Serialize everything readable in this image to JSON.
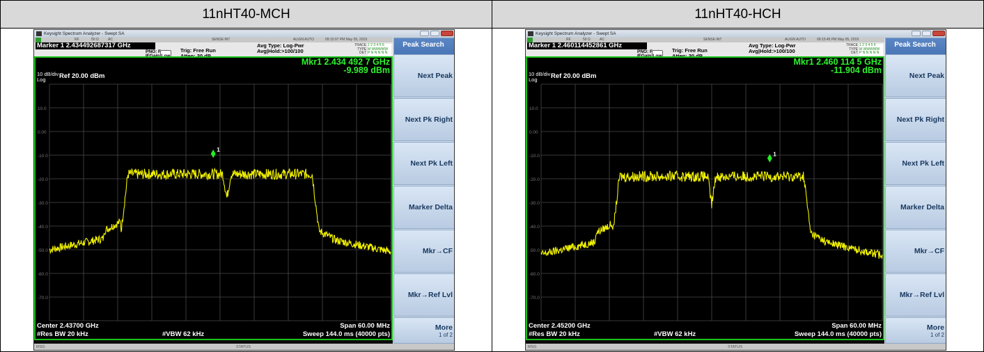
{
  "panels": [
    {
      "header": "11nHT40-MCH",
      "window_title": "Keysight Spectrum Analyzer - Swept SA",
      "status": {
        "rf": "RF",
        "impedance": "50 Ω",
        "coupling": "AC",
        "sense": "SENSE:INT",
        "align": "ALIGN AUTO",
        "datetime": "09:15:07 PM May 05, 2019"
      },
      "marker_box": "Marker 1  2.434492687317 GHz",
      "pno": "PNO: Fast",
      "ifgain": "IFGain:Low",
      "trig": "Trig: Free Run",
      "atten": "Atten: 30 dB",
      "avg_type": "Avg Type: Log-Pwr",
      "avg_hold": "Avg|Hold:>100/100",
      "trace_labels": [
        "TRACE",
        "TYPE",
        "DET"
      ],
      "trace_values": [
        "1 2 3 4 5 6",
        "M WWWWW",
        "P N N N N N"
      ],
      "mkr_readout_1": "Mkr1  2.434 492 7 GHz",
      "mkr_readout_2": "-9.989 dBm",
      "scale": "10 dB/div",
      "log": "Log",
      "ref_level": "Ref  20.00 dBm",
      "y_ticks": [
        "10.0",
        "0.00",
        "-10.0",
        "-20.0",
        "-30.0",
        "-40.0",
        "-50.0",
        "-60.0",
        "-70.0"
      ],
      "center": "Center 2.43700 GHz",
      "res_bw": "#Res BW  20 kHz",
      "vbw": "#VBW  62 kHz",
      "span": "Span 60.00 MHz",
      "sweep": "Sweep  144.0 ms (40000 pts)",
      "msg": "MSG",
      "status_label": "STATUS",
      "softkeys": [
        "Peak Search",
        "Next Peak",
        "Next Pk Right",
        "Next Pk Left",
        "Marker Delta",
        "Mkr→CF",
        "Mkr→Ref Lvl",
        "More"
      ],
      "more_sub": "1 of 2",
      "marker_number": "1",
      "trace_shape": {
        "marker_x_fraction": 0.48,
        "marker_level_dbm": -9.989,
        "notch_x_fraction": 0.52,
        "notch_level_dbm": -28,
        "band_start_fraction": 0.22,
        "band_end_fraction": 0.78,
        "plateau_dbm": -18,
        "edge_dbm": -42,
        "floor_dbm": -50
      }
    },
    {
      "header": "11nHT40-HCH",
      "window_title": "Keysight Spectrum Analyzer - Swept SA",
      "status": {
        "rf": "RF",
        "impedance": "50 Ω",
        "coupling": "AC",
        "sense": "SENSE:INT",
        "align": "ALIGN AUTO",
        "datetime": "09:15:45 PM May 05, 2019"
      },
      "marker_box": "Marker 1  2.460114452861 GHz",
      "pno": "PNO: Fast",
      "ifgain": "IFGain:Low",
      "trig": "Trig: Free Run",
      "atten": "Atten: 30 dB",
      "avg_type": "Avg Type: Log-Pwr",
      "avg_hold": "Avg|Hold:>100/100",
      "trace_labels": [
        "TRACE",
        "TYPE",
        "DET"
      ],
      "trace_values": [
        "1 2 3 4 5 6",
        "M WWWWW",
        "P N N N N N"
      ],
      "mkr_readout_1": "Mkr1  2.460 114 5 GHz",
      "mkr_readout_2": "-11.904 dBm",
      "scale": "10 dB/div",
      "log": "Log",
      "ref_level": "Ref  20.00 dBm",
      "y_ticks": [
        "10.0",
        "0.00",
        "-10.0",
        "-20.0",
        "-30.0",
        "-40.0",
        "-50.0",
        "-60.0",
        "-70.0"
      ],
      "center": "Center 2.45200 GHz",
      "res_bw": "#Res BW  20 kHz",
      "vbw": "#VBW  62 kHz",
      "span": "Span 60.00 MHz",
      "sweep": "Sweep  144.0 ms (40000 pts)",
      "msg": "MSG",
      "status_label": "STATUS",
      "softkeys": [
        "Peak Search",
        "Next Peak",
        "Next Pk Right",
        "Next Pk Left",
        "Marker Delta",
        "Mkr→CF",
        "Mkr→Ref Lvl",
        "More"
      ],
      "more_sub": "1 of 2",
      "marker_number": "1",
      "trace_shape": {
        "marker_x_fraction": 0.67,
        "marker_level_dbm": -11.904,
        "notch_x_fraction": 0.5,
        "notch_level_dbm": -31,
        "band_start_fraction": 0.22,
        "band_end_fraction": 0.78,
        "plateau_dbm": -19,
        "edge_dbm": -43,
        "floor_dbm": -52
      }
    }
  ],
  "colors": {
    "trace": "#f2f200",
    "marker": "#22ee22",
    "border": "#19c419",
    "readout": "#2ef02e"
  }
}
